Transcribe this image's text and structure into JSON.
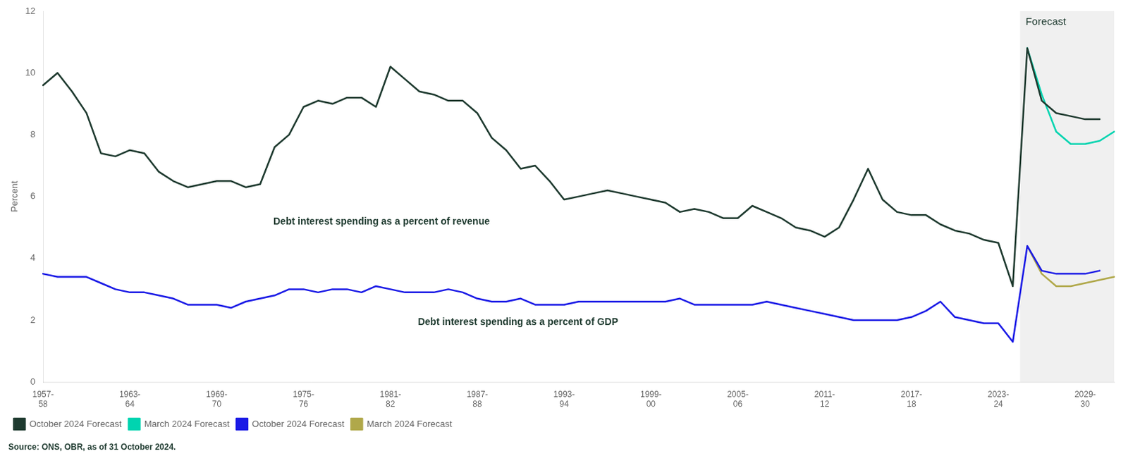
{
  "chart_data": {
    "type": "line",
    "ylabel": "Percent",
    "source": "Source: ONS, OBR, as of 31 October 2024.",
    "annotations": [
      "Forecast",
      "Debt interest spending as a percent of revenue",
      "Debt interest spending as a percent of GDP"
    ],
    "categories": [
      "1957-\n58",
      null,
      null,
      null,
      null,
      null,
      "1963-\n64",
      null,
      null,
      null,
      null,
      null,
      "1969-\n70",
      null,
      null,
      null,
      null,
      null,
      "1975-\n76",
      null,
      null,
      null,
      null,
      null,
      "1981-\n82",
      null,
      null,
      null,
      null,
      null,
      "1987-\n88",
      null,
      null,
      null,
      null,
      null,
      "1993-\n94",
      null,
      null,
      null,
      null,
      null,
      "1999-\n00",
      null,
      null,
      null,
      null,
      null,
      "2005-\n06",
      null,
      null,
      null,
      null,
      null,
      "2011-\n12",
      null,
      null,
      null,
      null,
      null,
      "2017-\n18",
      null,
      null,
      null,
      null,
      null,
      "2023-\n24",
      null,
      null,
      null,
      null,
      null,
      "2029-\n30",
      null,
      null
    ],
    "series": [
      {
        "name": "October 2024 Forecast",
        "color": "#1e3a2f",
        "values": [
          9.6,
          10.0,
          9.4,
          8.7,
          7.4,
          7.3,
          7.5,
          7.4,
          6.8,
          6.5,
          6.3,
          6.4,
          6.5,
          6.5,
          6.3,
          6.4,
          7.6,
          8.0,
          8.9,
          9.1,
          9.0,
          9.2,
          9.2,
          8.9,
          10.2,
          9.8,
          9.4,
          9.3,
          9.1,
          9.1,
          8.7,
          7.9,
          7.5,
          6.9,
          7.0,
          6.5,
          5.9,
          6.0,
          6.1,
          6.2,
          6.1,
          6.0,
          5.9,
          5.8,
          5.5,
          5.6,
          5.5,
          5.3,
          5.3,
          5.7,
          5.5,
          5.3,
          5.0,
          4.9,
          4.7,
          5.0,
          5.9,
          6.9,
          5.9,
          5.5,
          5.4,
          5.4,
          5.1,
          4.9,
          4.8,
          4.6,
          4.5,
          3.1,
          10.8,
          9.1,
          8.7,
          8.6,
          8.5,
          8.5,
          null
        ]
      },
      {
        "name": "March 2024 Forecast",
        "color": "#00d4b0",
        "values": [
          null,
          null,
          null,
          null,
          null,
          null,
          null,
          null,
          null,
          null,
          null,
          null,
          null,
          null,
          null,
          null,
          null,
          null,
          null,
          null,
          null,
          null,
          null,
          null,
          null,
          null,
          null,
          null,
          null,
          null,
          null,
          null,
          null,
          null,
          null,
          null,
          null,
          null,
          null,
          null,
          null,
          null,
          null,
          null,
          null,
          null,
          null,
          null,
          null,
          null,
          null,
          null,
          null,
          null,
          null,
          null,
          null,
          null,
          null,
          null,
          null,
          null,
          null,
          null,
          null,
          null,
          null,
          null,
          10.8,
          9.3,
          8.1,
          7.7,
          7.7,
          7.8,
          8.1
        ]
      },
      {
        "name": "October 2024 Forecast",
        "color": "#1a1ae6",
        "values": [
          3.5,
          3.4,
          3.4,
          3.4,
          3.2,
          3.0,
          2.9,
          2.9,
          2.8,
          2.7,
          2.5,
          2.5,
          2.5,
          2.4,
          2.6,
          2.7,
          2.8,
          3.0,
          3.0,
          2.9,
          3.0,
          3.0,
          2.9,
          3.1,
          3.0,
          2.9,
          2.9,
          2.9,
          3.0,
          2.9,
          2.7,
          2.6,
          2.6,
          2.7,
          2.5,
          2.5,
          2.5,
          2.6,
          2.6,
          2.6,
          2.6,
          2.6,
          2.6,
          2.6,
          2.7,
          2.5,
          2.5,
          2.5,
          2.5,
          2.5,
          2.6,
          2.5,
          2.4,
          2.3,
          2.2,
          2.1,
          2.0,
          2.0,
          2.0,
          2.0,
          2.1,
          2.3,
          2.6,
          2.1,
          2.0,
          1.9,
          1.9,
          1.3,
          4.4,
          3.6,
          3.5,
          3.5,
          3.5,
          3.6,
          null
        ]
      },
      {
        "name": "March 2024 Forecast",
        "color": "#b0a84a",
        "values": [
          null,
          null,
          null,
          null,
          null,
          null,
          null,
          null,
          null,
          null,
          null,
          null,
          null,
          null,
          null,
          null,
          null,
          null,
          null,
          null,
          null,
          null,
          null,
          null,
          null,
          null,
          null,
          null,
          null,
          null,
          null,
          null,
          null,
          null,
          null,
          null,
          null,
          null,
          null,
          null,
          null,
          null,
          null,
          null,
          null,
          null,
          null,
          null,
          null,
          null,
          null,
          null,
          null,
          null,
          null,
          null,
          null,
          null,
          null,
          null,
          null,
          null,
          null,
          null,
          null,
          null,
          null,
          null,
          4.4,
          3.5,
          3.1,
          3.1,
          3.2,
          3.3,
          3.4
        ]
      }
    ],
    "ylim": [
      0,
      12
    ],
    "yticks": [
      0,
      2,
      4,
      6,
      8,
      10,
      12
    ],
    "grid": false,
    "legend": "lower left"
  }
}
